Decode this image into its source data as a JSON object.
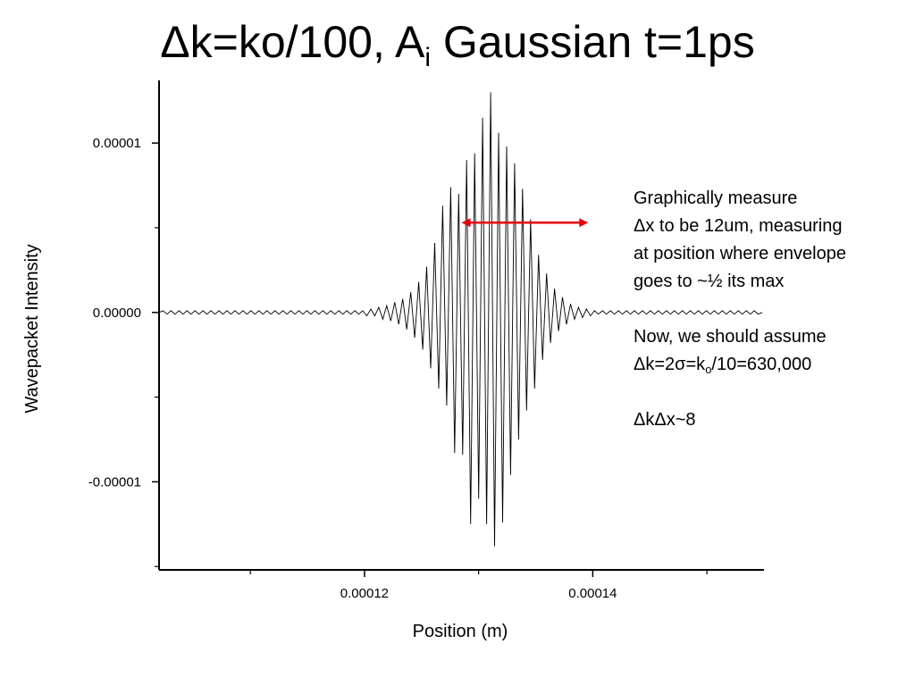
{
  "slide": {
    "title_main": "Δk=ko/100, A",
    "title_sub": "i",
    "title_rest": " Gaussian t=1ps"
  },
  "annotation": {
    "line1": "Graphically measure",
    "line2": "Δx to be 12um, measuring",
    "line3": "at position where envelope",
    "line4": "goes to ~½ its max",
    "line5": "Now, we should assume",
    "line6_pre": " Δk=2σ=k",
    "line6_sub": "o",
    "line6_post": "/10=630,000",
    "line7": "ΔkΔx~8",
    "arrow_color": "#e8000b"
  },
  "chart_data": {
    "type": "line",
    "xlabel": "Position (m)",
    "ylabel": "Wavepacket Intensity",
    "xlim": [
      0.000102,
      0.000155
    ],
    "ylim": [
      -1.52e-05,
      1.37e-05
    ],
    "x_ticks": [
      0.00012,
      0.00014
    ],
    "x_tick_labels": [
      "0.00012",
      "0.00014"
    ],
    "y_ticks": [
      1e-05,
      0.0,
      -1e-05
    ],
    "y_tick_labels": [
      "0.00001",
      "0.00000",
      "-0.00001"
    ],
    "grid": false,
    "line_color": "#000000",
    "series": [
      {
        "x_start": 0.000102,
        "x_step": 3.5e-07,
        "values": [
          0.0,
          1e-07,
          -1e-07,
          1e-07,
          -1e-07,
          1e-07,
          -1e-07,
          1e-07,
          -1e-07,
          1e-07,
          -1e-07,
          1e-07,
          -1e-07,
          1e-07,
          -1e-07,
          1e-07,
          -1e-07,
          1e-07,
          -1e-07,
          1e-07,
          -1e-07,
          1e-07,
          -1e-07,
          1e-07,
          -1e-07,
          1e-07,
          -1e-07,
          1e-07,
          -1e-07,
          1e-07,
          -1e-07,
          1e-07,
          -1e-07,
          1e-07,
          -1e-07,
          1e-07,
          -1e-07,
          1e-07,
          -1e-07,
          1e-07,
          -1e-07,
          1e-07,
          -1e-07,
          1e-07,
          -1e-07,
          1e-07,
          -1e-07,
          1e-07,
          -1e-07,
          1e-07,
          -1e-07,
          1e-07,
          -2e-07,
          2e-07,
          -2e-07,
          3e-07,
          -4e-07,
          4e-07,
          -5e-07,
          6e-07,
          -7e-07,
          8e-07,
          -1e-06,
          1.2e-06,
          -1.5e-06,
          1.8e-06,
          -2.2e-06,
          2.7e-06,
          -3.3e-06,
          4.1e-06,
          -4.5e-06,
          6.3e-06,
          -5.5e-06,
          7.4e-06,
          -8.3e-06,
          7e-06,
          -8.4e-06,
          9e-06,
          -1.25e-05,
          9.4e-06,
          -1.1e-05,
          1.15e-05,
          -1.25e-05,
          1.3e-05,
          -1.38e-05,
          1.06e-05,
          -1.24e-05,
          9.8e-06,
          -9.6e-06,
          8.8e-06,
          -7.5e-06,
          7.3e-06,
          -5.8e-06,
          5.5e-06,
          -4.5e-06,
          3.4e-06,
          -2.8e-06,
          2.3e-06,
          -1.8e-06,
          1.4e-06,
          -1.1e-06,
          9e-07,
          -7e-07,
          5e-07,
          -4e-07,
          3e-07,
          -3e-07,
          2e-07,
          -2e-07,
          1e-07,
          -1e-07,
          1e-07,
          -1e-07,
          1e-07,
          -1e-07,
          1e-07,
          -1e-07,
          1e-07,
          -1e-07,
          1e-07,
          -1e-07,
          1e-07,
          -1e-07,
          1e-07,
          -1e-07,
          1e-07,
          -1e-07,
          1e-07,
          -1e-07,
          1e-07,
          -1e-07,
          1e-07,
          -1e-07,
          1e-07,
          -1e-07,
          1e-07,
          -1e-07,
          1e-07,
          -1e-07,
          1e-07,
          -1e-07,
          1e-07,
          -1e-07,
          1e-07,
          -1e-07,
          1e-07,
          -1e-07,
          1e-07,
          -1e-07,
          1e-07,
          -1e-07,
          0.0
        ]
      }
    ],
    "annotation_arrow": {
      "x_from": 0.0001285,
      "x_to": 0.0001396,
      "y": 5.3e-06
    }
  }
}
